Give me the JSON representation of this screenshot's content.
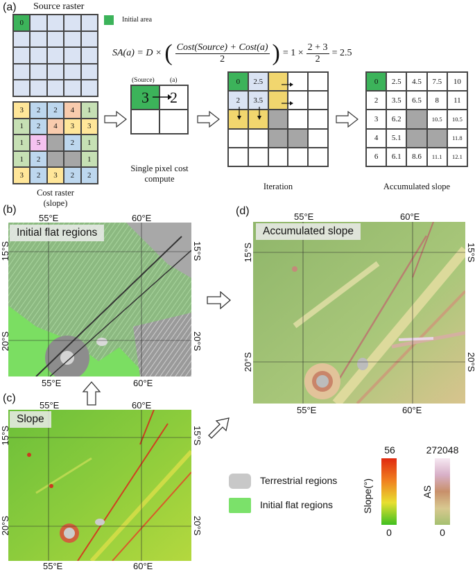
{
  "panel_a": {
    "letter": "(a)",
    "source_title": "Source raster",
    "legend_initial": "Initial area",
    "source_start_value": "0",
    "equation": "SA(a) = D × (Cost(Source) + Cost(a)) / 2 = 1 × (2 + 3) / 2 = 2.5",
    "eq_lhs": "SA(a) = D ×",
    "eq_num": "Cost(Source) + Cost(a)",
    "eq_den": "2",
    "eq_mid": "= 1 ×",
    "eq_num2": "2 + 3",
    "eq_den2": "2",
    "eq_result": "= 2.5",
    "cost_raster": [
      [
        "3",
        "2",
        "2",
        "4",
        "1"
      ],
      [
        "1",
        "2",
        "4",
        "3",
        "3"
      ],
      [
        "1",
        "5",
        "",
        "2",
        "1"
      ],
      [
        "1",
        "2",
        "",
        "",
        "1"
      ],
      [
        "3",
        "2",
        "3",
        "2",
        "2"
      ]
    ],
    "cost_caption_1": "Cost raster",
    "cost_caption_2": "(slope)",
    "single_source_label": "(Source)",
    "single_a_label": "(a)",
    "single_source_value": "3",
    "single_a_value": "2",
    "single_caption_1": "Single pixel cost",
    "single_caption_2": "compute",
    "iteration": [
      [
        "0",
        "2.5",
        "",
        "",
        ""
      ],
      [
        "2",
        "3.5",
        "",
        "",
        ""
      ],
      [
        "",
        "",
        "",
        "",
        ""
      ],
      [
        "",
        "",
        "",
        "",
        ""
      ],
      [
        "",
        "",
        "",
        "",
        ""
      ]
    ],
    "iteration_caption": "Iteration",
    "accumulated": [
      [
        "0",
        "2.5",
        "4.5",
        "7.5",
        "10"
      ],
      [
        "2",
        "3.5",
        "6.5",
        "8",
        "11"
      ],
      [
        "3",
        "6.2",
        "",
        "10.5",
        "10.5"
      ],
      [
        "4",
        "5.1",
        "",
        "",
        "11.8"
      ],
      [
        "6",
        "6.1",
        "8.6",
        "11.1",
        "12.1"
      ]
    ],
    "accumulated_caption": "Accumulated slope"
  },
  "panel_b": {
    "letter": "(b)",
    "label": "Initial flat regions",
    "lon": [
      "55°E",
      "60°E"
    ],
    "lat": [
      "15°S",
      "20°S"
    ]
  },
  "panel_c": {
    "letter": "(c)",
    "label": "Slope",
    "lon": [
      "55°E",
      "60°E"
    ],
    "lat": [
      "15°S",
      "20°S"
    ]
  },
  "panel_d": {
    "letter": "(d)",
    "label": "Accumulated slope",
    "lon": [
      "55°E",
      "60°E"
    ],
    "lat": [
      "15°S",
      "20°S"
    ]
  },
  "legend": {
    "terrestrial": "Terrestrial regions",
    "flat": "Initial flat regions",
    "terrestrial_color": "#c8c8c8",
    "flat_color": "#7be16a",
    "slope_title": "Slope(°)",
    "slope_max": "56",
    "slope_min": "0",
    "as_title": "AS",
    "as_max": "272048",
    "as_min": "0"
  },
  "colors": {
    "initial_green": "#3cb35a",
    "grid_blue": "#dae3f3",
    "iter_yellow": "#f1d66e",
    "gray_cell": "#a6a6a6",
    "cost_orange": "#f8cbad",
    "cost_green": "#c6e0b4",
    "cost_yellow": "#ffe699",
    "cost_blue": "#bdd7ee",
    "cost_pink": "#f5c2f0"
  }
}
